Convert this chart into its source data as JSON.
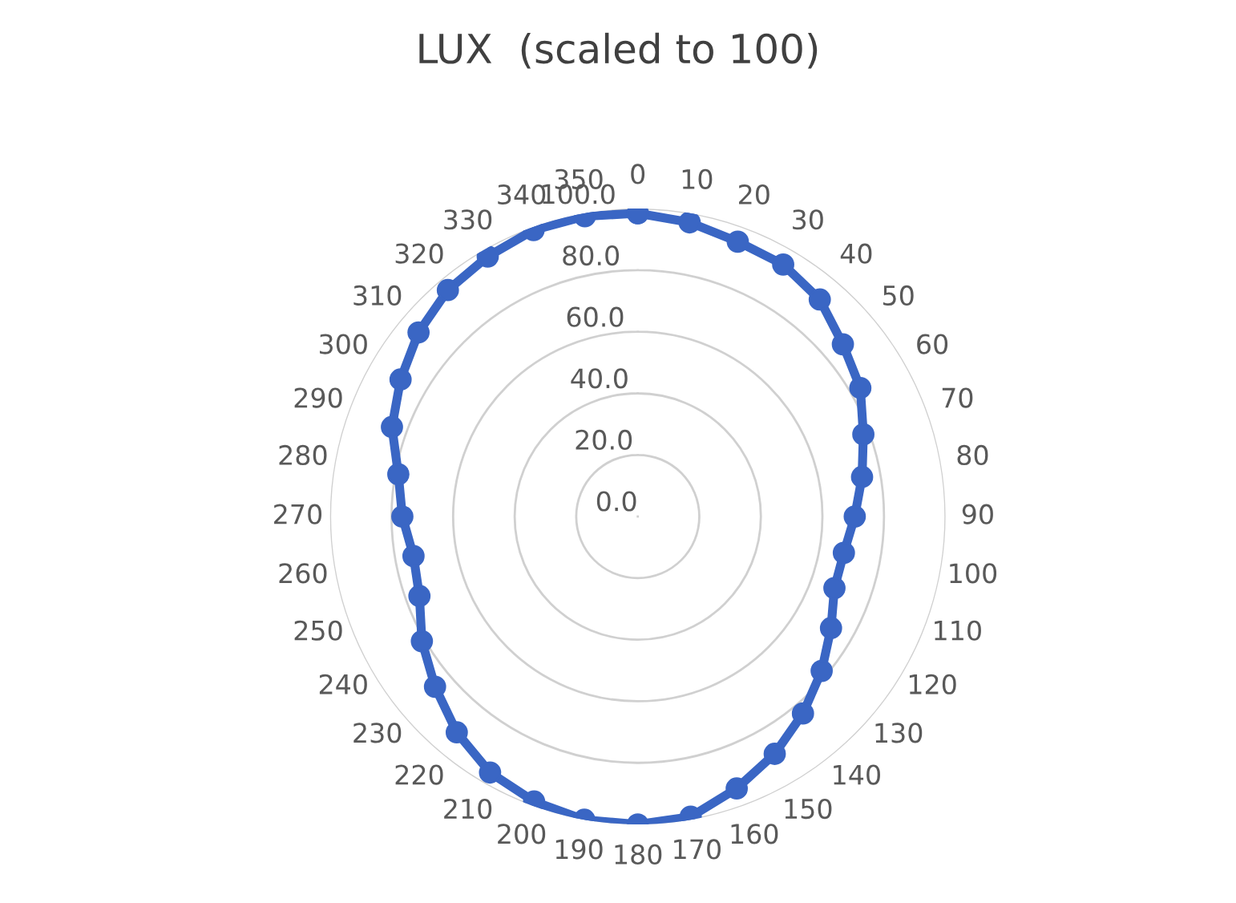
{
  "chart_data": {
    "type": "radar",
    "title": "LUX  (scaled to 100)",
    "categories": [
      "0",
      "10",
      "20",
      "30",
      "40",
      "50",
      "60",
      "70",
      "80",
      "90",
      "100",
      "110",
      "120",
      "130",
      "140",
      "150",
      "160",
      "170",
      "180",
      "190",
      "200",
      "210",
      "220",
      "230",
      "240",
      "250",
      "260",
      "270",
      "280",
      "290",
      "300",
      "310",
      "320",
      "330",
      "340",
      "350"
    ],
    "series": [
      {
        "color": "#3a66c4",
        "values": [
          98.5,
          97,
          95,
          94.5,
          92,
          87,
          83.5,
          78,
          74,
          70.5,
          68,
          68,
          72.5,
          78,
          83.5,
          89,
          94,
          99,
          100,
          100,
          98.5,
          96,
          91.5,
          86,
          81,
          75.5,
          74,
          76.5,
          79,
          85,
          89,
          93,
          96,
          97.5,
          99,
          99
        ]
      }
    ],
    "ylim": [
      0,
      100
    ],
    "yticks": [
      {
        "value": 0,
        "label": "0.0"
      },
      {
        "value": 20,
        "label": "20.0"
      },
      {
        "value": 40,
        "label": "40.0"
      },
      {
        "value": 60,
        "label": "60.0"
      },
      {
        "value": 80,
        "label": "80.0"
      },
      {
        "value": 100,
        "label": "100.0"
      }
    ],
    "grid": "y",
    "marker": "circle",
    "line_style": "solid"
  }
}
